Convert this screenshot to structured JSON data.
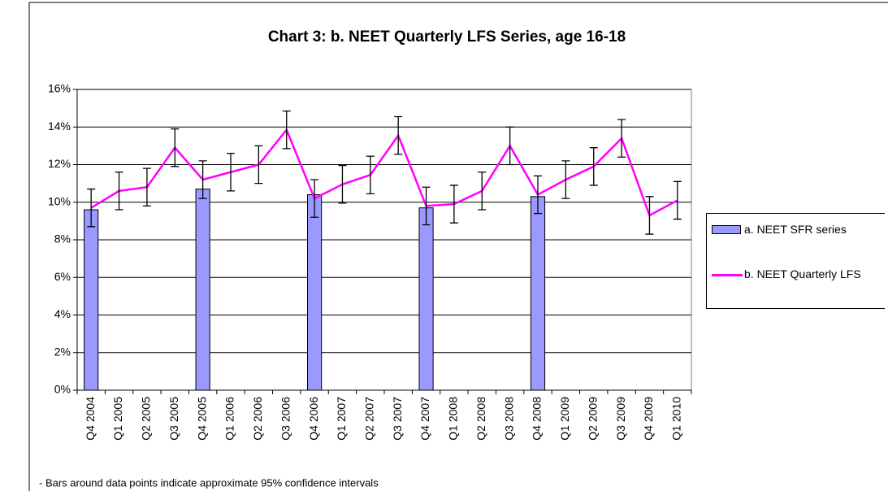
{
  "chart_data": {
    "type": "combo",
    "title": "Chart 3: b. NEET Quarterly LFS Series, age 16-18",
    "footnote": "- Bars around data points indicate approximate 95% confidence intervals",
    "categories": [
      "Q4 2004",
      "Q1 2005",
      "Q2 2005",
      "Q3 2005",
      "Q4 2005",
      "Q1 2006",
      "Q2 2006",
      "Q3 2006",
      "Q4 2006",
      "Q1 2007",
      "Q2 2007",
      "Q3 2007",
      "Q4 2007",
      "Q1 2008",
      "Q2 2008",
      "Q3 2008",
      "Q4 2008",
      "Q1 2009",
      "Q2 2009",
      "Q3 2009",
      "Q4 2009",
      "Q1 2010"
    ],
    "series": [
      {
        "name": "a. NEET SFR series",
        "type": "bar",
        "color": "#9999ff",
        "values": [
          9.6,
          null,
          null,
          null,
          10.7,
          null,
          null,
          null,
          10.4,
          null,
          null,
          null,
          9.7,
          null,
          null,
          null,
          10.3,
          null,
          null,
          null,
          null,
          null
        ]
      },
      {
        "name": "b. NEET Quarterly LFS",
        "type": "line",
        "color": "#ff00ff",
        "values": [
          9.7,
          10.6,
          10.8,
          12.9,
          11.2,
          11.6,
          12.0,
          13.85,
          10.2,
          10.95,
          11.45,
          13.55,
          9.8,
          9.9,
          10.6,
          13.0,
          10.4,
          11.2,
          11.9,
          13.4,
          9.3,
          10.1
        ],
        "errors": [
          1.0,
          1.0,
          1.0,
          1.0,
          1.0,
          1.0,
          1.0,
          1.0,
          1.0,
          1.0,
          1.0,
          1.0,
          1.0,
          1.0,
          1.0,
          1.0,
          1.0,
          1.0,
          1.0,
          1.0,
          1.0,
          1.0
        ]
      }
    ],
    "ylim": [
      0,
      16
    ],
    "yticks": [
      {
        "value": 0,
        "label": "0%"
      },
      {
        "value": 2,
        "label": "2%"
      },
      {
        "value": 4,
        "label": "4%"
      },
      {
        "value": 6,
        "label": "6%"
      },
      {
        "value": 8,
        "label": "8%"
      },
      {
        "value": 10,
        "label": "10%"
      },
      {
        "value": 12,
        "label": "12%"
      },
      {
        "value": 14,
        "label": "14%"
      },
      {
        "value": 16,
        "label": "16%"
      }
    ],
    "grid": true,
    "legend": "right"
  }
}
